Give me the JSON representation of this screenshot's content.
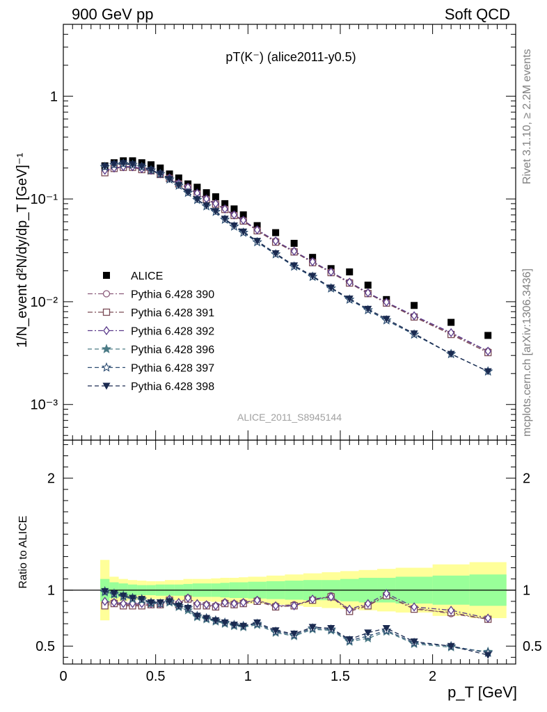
{
  "header": {
    "left": "900 GeV pp",
    "right": "Soft QCD",
    "side_top": "Rivet 3.1.10, ≥ 2.2M events",
    "side_bottom": "mcplots.cern.ch [arXiv:1306.3436]"
  },
  "chart_data": [
    {
      "type": "scatter",
      "title": "pT(K⁻) (alice2011-y0.5)",
      "ylabel": "1/N_event d²N/dy/dp_T [GeV]⁻¹",
      "xlabel": "p_T [GeV]",
      "yscale": "log",
      "xlim": [
        0,
        2.45
      ],
      "ylim": [
        0.00045,
        5
      ],
      "watermark": "ALICE_2011_S8945144",
      "legend_position": "left",
      "y_ticks": [
        "10⁻³",
        "10⁻²",
        "10⁻¹",
        "1"
      ],
      "x": [
        0.225,
        0.275,
        0.325,
        0.375,
        0.425,
        0.475,
        0.525,
        0.575,
        0.625,
        0.675,
        0.725,
        0.775,
        0.825,
        0.875,
        0.925,
        0.975,
        1.05,
        1.15,
        1.25,
        1.35,
        1.45,
        1.55,
        1.65,
        1.75,
        1.9,
        2.1,
        2.3
      ],
      "series": [
        {
          "name": "ALICE",
          "color": "#000000",
          "marker": "square-filled",
          "values": [
            0.21,
            0.225,
            0.235,
            0.235,
            0.225,
            0.215,
            0.2,
            0.175,
            0.16,
            0.14,
            0.13,
            0.115,
            0.105,
            0.09,
            0.08,
            0.07,
            0.055,
            0.047,
            0.037,
            0.027,
            0.021,
            0.0195,
            0.0145,
            0.0105,
            0.0092,
            0.0063,
            0.0047
          ]
        },
        {
          "name": "Pythia 6.428 390",
          "color": "#8a5a7a",
          "marker": "circle-open",
          "dash": "dashdot",
          "values": [
            0.185,
            0.2,
            0.205,
            0.205,
            0.195,
            0.19,
            0.175,
            0.16,
            0.142,
            0.13,
            0.113,
            0.1,
            0.09,
            0.08,
            0.07,
            0.062,
            0.05,
            0.039,
            0.031,
            0.0245,
            0.0195,
            0.0155,
            0.0122,
            0.0098,
            0.0072,
            0.0049,
            0.0033
          ]
        },
        {
          "name": "Pythia 6.428 391",
          "color": "#7a4a55",
          "marker": "square-open",
          "dash": "dashdot",
          "values": [
            0.18,
            0.198,
            0.203,
            0.203,
            0.193,
            0.188,
            0.173,
            0.158,
            0.14,
            0.128,
            0.112,
            0.099,
            0.089,
            0.079,
            0.069,
            0.061,
            0.049,
            0.038,
            0.0305,
            0.024,
            0.0192,
            0.0152,
            0.012,
            0.0097,
            0.0071,
            0.0048,
            0.0032
          ]
        },
        {
          "name": "Pythia 6.428 392",
          "color": "#5a3a8a",
          "marker": "diamond-open",
          "dash": "dashdot",
          "values": [
            0.19,
            0.2,
            0.206,
            0.206,
            0.197,
            0.19,
            0.176,
            0.16,
            0.142,
            0.13,
            0.114,
            0.1,
            0.09,
            0.08,
            0.07,
            0.062,
            0.05,
            0.039,
            0.031,
            0.0245,
            0.0195,
            0.0155,
            0.0122,
            0.0099,
            0.0073,
            0.005,
            0.0033
          ]
        },
        {
          "name": "Pythia 6.428 396",
          "color": "#4a7a85",
          "marker": "star-filled",
          "dash": "dashed",
          "values": [
            0.205,
            0.215,
            0.22,
            0.215,
            0.205,
            0.19,
            0.175,
            0.155,
            0.135,
            0.115,
            0.098,
            0.085,
            0.075,
            0.063,
            0.054,
            0.047,
            0.038,
            0.029,
            0.022,
            0.0175,
            0.0135,
            0.0105,
            0.0083,
            0.0066,
            0.0048,
            0.0031,
            0.0021
          ]
        },
        {
          "name": "Pythia 6.428 397",
          "color": "#2a4a70",
          "marker": "star-open",
          "dash": "dashed",
          "values": [
            0.205,
            0.215,
            0.22,
            0.215,
            0.205,
            0.19,
            0.175,
            0.155,
            0.135,
            0.115,
            0.098,
            0.085,
            0.075,
            0.063,
            0.054,
            0.047,
            0.038,
            0.029,
            0.022,
            0.0175,
            0.0135,
            0.0105,
            0.0083,
            0.0066,
            0.0048,
            0.0031,
            0.0021
          ]
        },
        {
          "name": "Pythia 6.428 398",
          "color": "#1a2a50",
          "marker": "triangle-down-filled",
          "dash": "dashed",
          "values": [
            0.207,
            0.217,
            0.222,
            0.217,
            0.207,
            0.192,
            0.176,
            0.156,
            0.136,
            0.116,
            0.099,
            0.086,
            0.076,
            0.064,
            0.055,
            0.048,
            0.039,
            0.0295,
            0.0225,
            0.0178,
            0.0137,
            0.0107,
            0.0085,
            0.0068,
            0.0049,
            0.0031,
            0.0021
          ]
        }
      ]
    },
    {
      "type": "scatter",
      "ylabel": "Ratio to ALICE",
      "xlabel": "p_T [GeV]",
      "xlim": [
        0,
        2.45
      ],
      "ylim": [
        0.34,
        2.34
      ],
      "y_ticks": [
        0.5,
        1,
        2
      ],
      "x_ticks": [
        0,
        0.5,
        1,
        1.5,
        2
      ],
      "x_tick_labels": [
        "0",
        "0.5",
        "1",
        "1.5",
        "2"
      ],
      "y_tick_labels": [
        "0.5",
        "1",
        "2"
      ],
      "bands": {
        "edges": [
          0.2,
          0.25,
          0.3,
          0.35,
          0.4,
          0.45,
          0.5,
          0.55,
          0.6,
          0.65,
          0.7,
          0.75,
          0.8,
          0.85,
          0.9,
          0.95,
          1.0,
          1.1,
          1.2,
          1.3,
          1.4,
          1.5,
          1.6,
          1.7,
          1.8,
          2.0,
          2.2,
          2.4
        ],
        "yellow_half": [
          0.27,
          0.12,
          0.1,
          0.09,
          0.085,
          0.08,
          0.08,
          0.09,
          0.09,
          0.1,
          0.1,
          0.1,
          0.105,
          0.11,
          0.11,
          0.115,
          0.12,
          0.13,
          0.14,
          0.15,
          0.16,
          0.17,
          0.18,
          0.19,
          0.2,
          0.23,
          0.25
        ],
        "green_half": [
          0.1,
          0.07,
          0.06,
          0.05,
          0.045,
          0.045,
          0.05,
          0.05,
          0.05,
          0.055,
          0.06,
          0.06,
          0.06,
          0.065,
          0.07,
          0.07,
          0.075,
          0.08,
          0.085,
          0.09,
          0.09,
          0.1,
          0.11,
          0.11,
          0.12,
          0.13,
          0.14
        ],
        "yellow_color": "#ffff99",
        "green_color": "#99ff99"
      },
      "series": [
        {
          "name": "Pythia 6.428 390",
          "values": [
            0.88,
            0.89,
            0.87,
            0.87,
            0.87,
            0.88,
            0.87,
            0.91,
            0.88,
            0.93,
            0.87,
            0.87,
            0.86,
            0.89,
            0.88,
            0.89,
            0.91,
            0.86,
            0.87,
            0.91,
            0.95,
            0.82,
            0.87,
            0.95,
            0.84,
            0.79,
            0.74
          ]
        },
        {
          "name": "Pythia 6.428 391",
          "values": [
            0.86,
            0.88,
            0.86,
            0.86,
            0.86,
            0.87,
            0.87,
            0.91,
            0.87,
            0.92,
            0.86,
            0.86,
            0.85,
            0.88,
            0.87,
            0.88,
            0.9,
            0.85,
            0.86,
            0.91,
            0.94,
            0.81,
            0.86,
            0.95,
            0.83,
            0.8,
            0.74
          ]
        },
        {
          "name": "Pythia 6.428 392",
          "values": [
            0.9,
            0.89,
            0.88,
            0.88,
            0.88,
            0.88,
            0.88,
            0.92,
            0.89,
            0.93,
            0.88,
            0.87,
            0.86,
            0.89,
            0.88,
            0.89,
            0.91,
            0.86,
            0.86,
            0.92,
            0.94,
            0.83,
            0.88,
            0.97,
            0.85,
            0.82,
            0.75
          ]
        },
        {
          "name": "Pythia 6.428 396",
          "values": [
            0.98,
            0.96,
            0.94,
            0.92,
            0.91,
            0.88,
            0.88,
            0.89,
            0.85,
            0.82,
            0.76,
            0.74,
            0.72,
            0.7,
            0.68,
            0.67,
            0.69,
            0.62,
            0.59,
            0.65,
            0.64,
            0.54,
            0.57,
            0.63,
            0.52,
            0.49,
            0.45
          ]
        },
        {
          "name": "Pythia 6.428 397",
          "values": [
            0.99,
            0.97,
            0.95,
            0.93,
            0.92,
            0.89,
            0.88,
            0.9,
            0.86,
            0.84,
            0.77,
            0.75,
            0.73,
            0.71,
            0.69,
            0.68,
            0.7,
            0.63,
            0.6,
            0.66,
            0.65,
            0.55,
            0.59,
            0.64,
            0.53,
            0.5,
            0.44
          ]
        },
        {
          "name": "Pythia 6.428 398",
          "values": [
            0.99,
            0.97,
            0.95,
            0.93,
            0.92,
            0.89,
            0.89,
            0.9,
            0.86,
            0.84,
            0.77,
            0.75,
            0.73,
            0.71,
            0.69,
            0.68,
            0.71,
            0.64,
            0.61,
            0.67,
            0.66,
            0.56,
            0.62,
            0.66,
            0.54,
            0.5,
            0.42
          ]
        }
      ]
    }
  ]
}
